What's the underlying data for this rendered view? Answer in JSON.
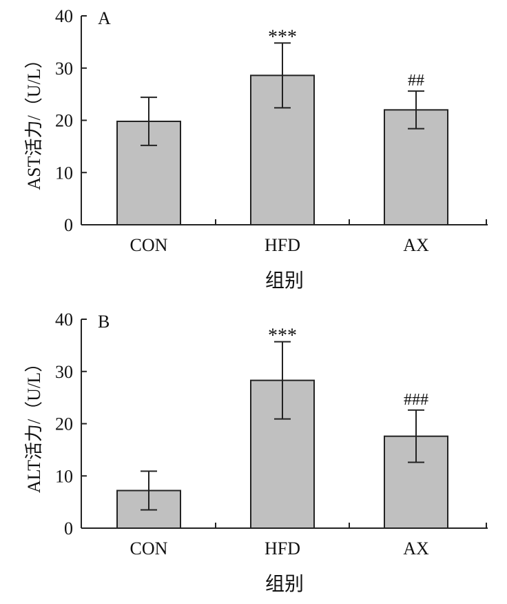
{
  "chart_data": [
    {
      "type": "bar",
      "panel_label": "A",
      "title": "",
      "categories": [
        "CON",
        "HFD",
        "AX"
      ],
      "values": [
        19.8,
        28.6,
        22.0
      ],
      "errors": [
        4.6,
        6.2,
        3.6
      ],
      "annotations": [
        "",
        "***",
        "##"
      ],
      "xlabel": "组别",
      "ylabel": "AST活力/（U/L）",
      "ylim": [
        0,
        40
      ],
      "yticks": [
        0,
        10,
        20,
        30,
        40
      ],
      "grid": false,
      "bar_color": "#c0c0c0"
    },
    {
      "type": "bar",
      "panel_label": "B",
      "title": "",
      "categories": [
        "CON",
        "HFD",
        "AX"
      ],
      "values": [
        7.2,
        28.3,
        17.6
      ],
      "errors": [
        3.7,
        7.4,
        5.0
      ],
      "annotations": [
        "",
        "***",
        "###"
      ],
      "xlabel": "组别",
      "ylabel": "ALT活力/（U/L）",
      "ylim": [
        0,
        40
      ],
      "yticks": [
        0,
        10,
        20,
        30,
        40
      ],
      "grid": false,
      "bar_color": "#c0c0c0"
    }
  ]
}
